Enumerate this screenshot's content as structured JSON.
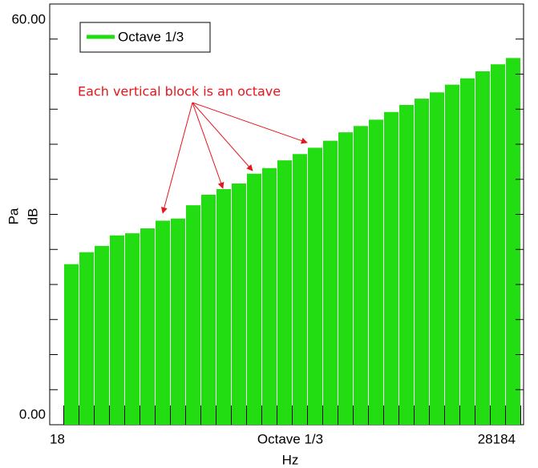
{
  "chart_data": {
    "type": "bar",
    "series": [
      {
        "name": "Octave 1/3",
        "color": "#22dd11",
        "values": [
          22.9,
          24.6,
          25.5,
          27.0,
          27.3,
          28.0,
          29.1,
          29.4,
          31.3,
          32.8,
          33.6,
          34.4,
          35.8,
          36.6,
          37.7,
          38.6,
          39.5,
          40.5,
          41.7,
          42.6,
          43.5,
          44.6,
          45.6,
          46.5,
          47.4,
          48.5,
          49.4,
          50.4,
          51.4,
          52.3
        ]
      }
    ],
    "categories": [
      null,
      null,
      null,
      null,
      null,
      null,
      null,
      null,
      null,
      null,
      null,
      null,
      null,
      null,
      null,
      null,
      null,
      null,
      null,
      null,
      null,
      null,
      null,
      null,
      null,
      null,
      null,
      null,
      null,
      null
    ],
    "ylim": [
      0,
      60
    ],
    "yticks": [
      {
        "value": 0,
        "label": "0.00"
      },
      {
        "value": 60,
        "label": "60.00"
      }
    ],
    "minor_yticks": [
      5,
      10,
      15,
      20,
      25,
      30,
      35,
      40,
      45,
      50,
      55
    ],
    "xlim": [
      18,
      28184
    ],
    "xscale": "log",
    "xticks": [
      18,
      28184
    ],
    "ylabel": "Pa",
    "ylabel2": "dB",
    "xlabel_top": "Octave 1/3",
    "xlabel": "Hz",
    "annotation": "Each vertical block is an octave",
    "legend": "top-left"
  }
}
